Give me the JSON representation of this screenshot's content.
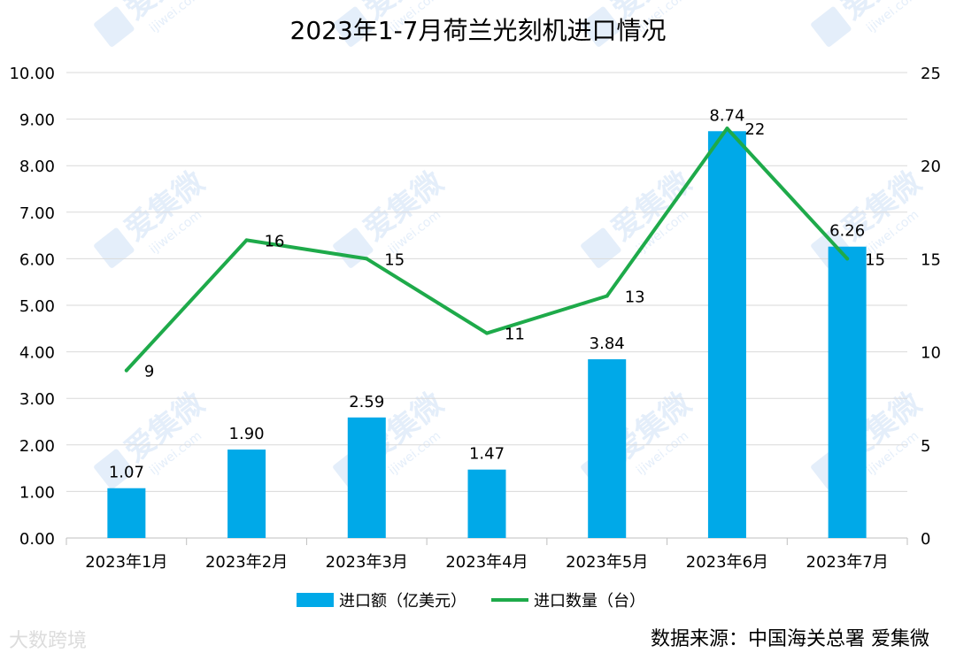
{
  "chart_data": {
    "type": "bar+line",
    "title": "2023年1-7月荷兰光刻机进口情况",
    "categories": [
      "2023年1月",
      "2023年2月",
      "2023年3月",
      "2023年4月",
      "2023年5月",
      "2023年6月",
      "2023年7月"
    ],
    "series": [
      {
        "name": "进口额（亿美元）",
        "type": "bar",
        "axis": "left",
        "color": "#00a9e8",
        "values": [
          1.07,
          1.9,
          2.59,
          1.47,
          3.84,
          8.74,
          6.26
        ],
        "labels": [
          "1.07",
          "1.90",
          "2.59",
          "1.47",
          "3.84",
          "8.74",
          "6.26"
        ]
      },
      {
        "name": "进口数量（台）",
        "type": "line",
        "axis": "right",
        "color": "#1eaa4a",
        "values": [
          9,
          16,
          15,
          11,
          13,
          22,
          15
        ],
        "labels": [
          "9",
          "16",
          "15",
          "11",
          "13",
          "22",
          "15"
        ]
      }
    ],
    "y_left": {
      "range": [
        0,
        10
      ],
      "ticks": [
        "0.00",
        "1.00",
        "2.00",
        "3.00",
        "4.00",
        "5.00",
        "6.00",
        "7.00",
        "8.00",
        "9.00",
        "10.00"
      ]
    },
    "y_right": {
      "range": [
        0,
        25
      ],
      "ticks": [
        "0",
        "5",
        "10",
        "15",
        "20",
        "25"
      ]
    },
    "grid": true,
    "legend_position": "bottom"
  },
  "watermark": {
    "text": "爱集微",
    "subtext": "ijiwei.com"
  },
  "footer": {
    "left_text": "大数跨境",
    "source": "数据来源：中国海关总署 爱集微"
  }
}
